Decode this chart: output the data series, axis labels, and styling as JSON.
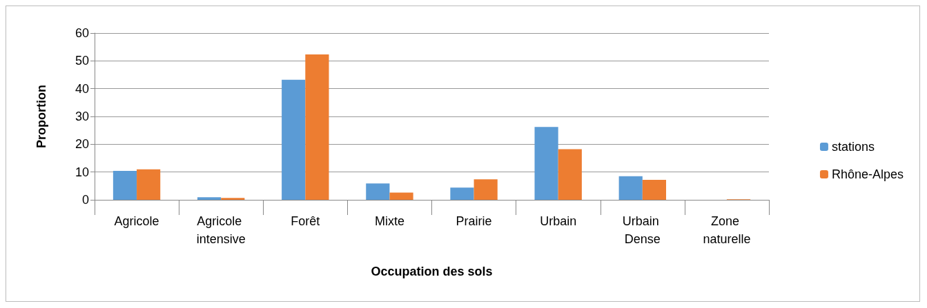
{
  "chart_data": {
    "type": "bar",
    "xlabel": "Occupation des sols",
    "ylabel": "Proportion",
    "categories": [
      "Agricole",
      "Agricole intensive",
      "Forêt",
      "Mixte",
      "Prairie",
      "Urbain",
      "Urbain Dense",
      "Zone naturelle"
    ],
    "series": [
      {
        "name": "stations",
        "color": "#5b9bd5",
        "values": [
          10.4,
          0.9,
          43.2,
          5.9,
          4.4,
          26.2,
          8.5,
          0
        ]
      },
      {
        "name": "Rhône-Alpes",
        "color": "#ed7d31",
        "values": [
          11.0,
          0.7,
          52.3,
          2.6,
          7.4,
          18.2,
          7.2,
          0.2
        ]
      }
    ],
    "ylim": [
      0,
      60
    ],
    "yticks": [
      0,
      10,
      20,
      30,
      40,
      50,
      60
    ],
    "grid": "y",
    "legend": "right"
  }
}
